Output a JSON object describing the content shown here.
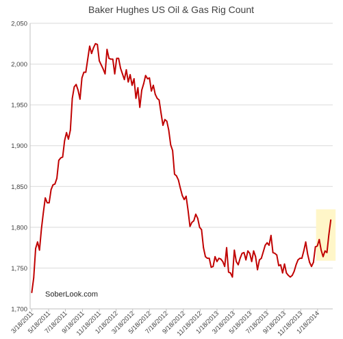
{
  "chart_data": {
    "type": "line",
    "title": "Baker Hughes US Oil & Gas Rig Count",
    "xlabel": "",
    "ylabel": "",
    "ylim": [
      1700,
      2050
    ],
    "yticks": [
      "1,700",
      "1,750",
      "1,800",
      "1,850",
      "1,900",
      "1,950",
      "2,000",
      "2,050"
    ],
    "x_tick_labels": [
      "3/18/2011",
      "5/18/2011",
      "7/18/2011",
      "9/18/2011",
      "11/18/2011",
      "1/18/2012",
      "3/18/2012",
      "5/18/2012",
      "7/18/2012",
      "9/18/2012",
      "11/18/2012",
      "1/18/2013",
      "3/18/2013",
      "5/18/2013",
      "7/18/2013",
      "9/18/2013",
      "11/18/2013",
      "1/18/2014"
    ],
    "grid": true,
    "line_color": "#c00000",
    "highlight_color": "#fff6c8",
    "highlight_range": [
      "2014-01-20",
      "2014-03-07"
    ],
    "series": [
      {
        "values": [
          [
            "2011-03-18",
            1720
          ],
          [
            "2011-03-25",
            1738
          ],
          [
            "2011-04-01",
            1774
          ],
          [
            "2011-04-08",
            1782
          ],
          [
            "2011-04-15",
            1772
          ],
          [
            "2011-04-22",
            1798
          ],
          [
            "2011-04-29",
            1818
          ],
          [
            "2011-05-06",
            1836
          ],
          [
            "2011-05-13",
            1830
          ],
          [
            "2011-05-20",
            1830
          ],
          [
            "2011-05-27",
            1846
          ],
          [
            "2011-06-03",
            1852
          ],
          [
            "2011-06-10",
            1853
          ],
          [
            "2011-06-17",
            1860
          ],
          [
            "2011-06-24",
            1882
          ],
          [
            "2011-07-01",
            1885
          ],
          [
            "2011-07-08",
            1886
          ],
          [
            "2011-07-15",
            1906
          ],
          [
            "2011-07-22",
            1916
          ],
          [
            "2011-07-29",
            1908
          ],
          [
            "2011-08-05",
            1919
          ],
          [
            "2011-08-12",
            1958
          ],
          [
            "2011-08-19",
            1972
          ],
          [
            "2011-08-26",
            1975
          ],
          [
            "2011-09-02",
            1968
          ],
          [
            "2011-09-09",
            1957
          ],
          [
            "2011-09-16",
            1983
          ],
          [
            "2011-09-23",
            1990
          ],
          [
            "2011-09-30",
            1990
          ],
          [
            "2011-10-07",
            2006
          ],
          [
            "2011-10-14",
            2022
          ],
          [
            "2011-10-21",
            2013
          ],
          [
            "2011-10-28",
            2020
          ],
          [
            "2011-11-04",
            2025
          ],
          [
            "2011-11-11",
            2024
          ],
          [
            "2011-11-18",
            2004
          ],
          [
            "2011-11-25",
            1999
          ],
          [
            "2011-12-02",
            1994
          ],
          [
            "2011-12-09",
            1988
          ],
          [
            "2011-12-16",
            2018
          ],
          [
            "2011-12-23",
            2007
          ],
          [
            "2011-12-30",
            2006
          ],
          [
            "2012-01-06",
            2006
          ],
          [
            "2012-01-13",
            1988
          ],
          [
            "2012-01-20",
            2007
          ],
          [
            "2012-01-27",
            2007
          ],
          [
            "2012-02-03",
            1995
          ],
          [
            "2012-02-10",
            1988
          ],
          [
            "2012-02-17",
            1981
          ],
          [
            "2012-02-24",
            1993
          ],
          [
            "2012-03-02",
            1978
          ],
          [
            "2012-03-09",
            1987
          ],
          [
            "2012-03-16",
            1974
          ],
          [
            "2012-03-23",
            1982
          ],
          [
            "2012-03-30",
            1958
          ],
          [
            "2012-04-06",
            1971
          ],
          [
            "2012-04-13",
            1947
          ],
          [
            "2012-04-20",
            1968
          ],
          [
            "2012-04-27",
            1976
          ],
          [
            "2012-05-04",
            1986
          ],
          [
            "2012-05-11",
            1982
          ],
          [
            "2012-05-18",
            1983
          ],
          [
            "2012-05-25",
            1967
          ],
          [
            "2012-06-01",
            1974
          ],
          [
            "2012-06-08",
            1963
          ],
          [
            "2012-06-15",
            1958
          ],
          [
            "2012-06-22",
            1956
          ],
          [
            "2012-06-29",
            1940
          ],
          [
            "2012-07-06",
            1925
          ],
          [
            "2012-07-13",
            1932
          ],
          [
            "2012-07-20",
            1930
          ],
          [
            "2012-07-27",
            1919
          ],
          [
            "2012-08-03",
            1901
          ],
          [
            "2012-08-10",
            1894
          ],
          [
            "2012-08-17",
            1865
          ],
          [
            "2012-08-24",
            1863
          ],
          [
            "2012-08-31",
            1858
          ],
          [
            "2012-09-07",
            1848
          ],
          [
            "2012-09-14",
            1839
          ],
          [
            "2012-09-21",
            1834
          ],
          [
            "2012-09-28",
            1838
          ],
          [
            "2012-10-05",
            1821
          ],
          [
            "2012-10-12",
            1801
          ],
          [
            "2012-10-19",
            1806
          ],
          [
            "2012-10-26",
            1808
          ],
          [
            "2012-11-02",
            1816
          ],
          [
            "2012-11-09",
            1811
          ],
          [
            "2012-11-16",
            1800
          ],
          [
            "2012-11-23",
            1797
          ],
          [
            "2012-11-30",
            1775
          ],
          [
            "2012-12-07",
            1764
          ],
          [
            "2012-12-14",
            1762
          ],
          [
            "2012-12-21",
            1762
          ],
          [
            "2012-12-28",
            1751
          ],
          [
            "2013-01-04",
            1752
          ],
          [
            "2013-01-11",
            1764
          ],
          [
            "2013-01-18",
            1758
          ],
          [
            "2013-01-25",
            1762
          ],
          [
            "2013-02-01",
            1761
          ],
          [
            "2013-02-08",
            1758
          ],
          [
            "2013-02-15",
            1752
          ],
          [
            "2013-02-22",
            1775
          ],
          [
            "2013-03-01",
            1745
          ],
          [
            "2013-03-08",
            1744
          ],
          [
            "2013-03-15",
            1739
          ],
          [
            "2013-03-22",
            1772
          ],
          [
            "2013-03-29",
            1758
          ],
          [
            "2013-04-05",
            1754
          ],
          [
            "2013-04-12",
            1762
          ],
          [
            "2013-04-19",
            1768
          ],
          [
            "2013-04-26",
            1769
          ],
          [
            "2013-05-03",
            1760
          ],
          [
            "2013-05-10",
            1771
          ],
          [
            "2013-05-17",
            1768
          ],
          [
            "2013-05-24",
            1758
          ],
          [
            "2013-05-31",
            1771
          ],
          [
            "2013-06-07",
            1764
          ],
          [
            "2013-06-14",
            1748
          ],
          [
            "2013-06-21",
            1760
          ],
          [
            "2013-06-28",
            1762
          ],
          [
            "2013-07-05",
            1770
          ],
          [
            "2013-07-12",
            1778
          ],
          [
            "2013-07-19",
            1781
          ],
          [
            "2013-07-26",
            1778
          ],
          [
            "2013-08-02",
            1790
          ],
          [
            "2013-08-09",
            1769
          ],
          [
            "2013-08-16",
            1768
          ],
          [
            "2013-08-23",
            1766
          ],
          [
            "2013-08-30",
            1753
          ],
          [
            "2013-09-06",
            1754
          ],
          [
            "2013-09-13",
            1744
          ],
          [
            "2013-09-20",
            1755
          ],
          [
            "2013-09-27",
            1744
          ],
          [
            "2013-10-04",
            1741
          ],
          [
            "2013-10-11",
            1739
          ],
          [
            "2013-10-18",
            1741
          ],
          [
            "2013-10-25",
            1746
          ],
          [
            "2013-11-01",
            1754
          ],
          [
            "2013-11-08",
            1760
          ],
          [
            "2013-11-15",
            1762
          ],
          [
            "2013-11-22",
            1762
          ],
          [
            "2013-11-29",
            1771
          ],
          [
            "2013-12-06",
            1782
          ],
          [
            "2013-12-13",
            1767
          ],
          [
            "2013-12-20",
            1757
          ],
          [
            "2013-12-27",
            1752
          ],
          [
            "2014-01-03",
            1757
          ],
          [
            "2014-01-10",
            1776
          ],
          [
            "2014-01-17",
            1777
          ],
          [
            "2014-01-24",
            1785
          ],
          [
            "2014-01-31",
            1772
          ],
          [
            "2014-02-07",
            1764
          ],
          [
            "2014-02-14",
            1771
          ],
          [
            "2014-02-21",
            1769
          ],
          [
            "2014-02-28",
            1791
          ],
          [
            "2014-03-07",
            1809
          ]
        ]
      }
    ],
    "watermark": "SoberLook.com"
  }
}
